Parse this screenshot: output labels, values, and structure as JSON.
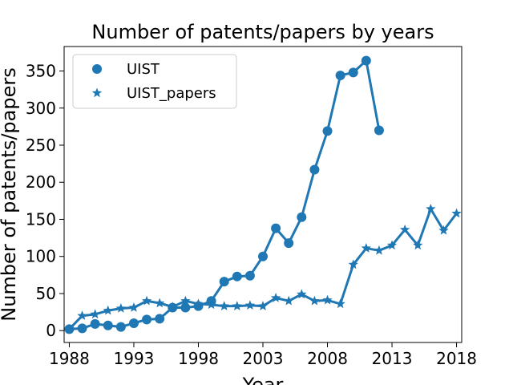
{
  "chart_data": {
    "type": "line",
    "title": "Number of patents/papers by years",
    "xlabel": "Year",
    "ylabel": "Number of patents/papers",
    "xlim": [
      1987.6,
      2018.4
    ],
    "ylim": [
      -16,
      383
    ],
    "xticks": [
      1988,
      1993,
      1998,
      2003,
      2008,
      2013,
      2018
    ],
    "yticks": [
      0,
      50,
      100,
      150,
      200,
      250,
      300,
      350
    ],
    "grid": false,
    "legend_position": "top-left",
    "color": "#1f77b4",
    "series": [
      {
        "name": "UIST",
        "marker": "circle",
        "x": [
          1988,
          1989,
          1990,
          1991,
          1992,
          1993,
          1994,
          1995,
          1996,
          1997,
          1998,
          1999,
          2000,
          2001,
          2002,
          2003,
          2004,
          2005,
          2006,
          2007,
          2008,
          2009,
          2010,
          2011,
          2012
        ],
        "y": [
          2,
          3,
          9,
          7,
          5,
          10,
          15,
          16,
          31,
          31,
          33,
          40,
          66,
          73,
          74,
          100,
          138,
          118,
          153,
          217,
          269,
          344,
          348,
          364,
          270
        ]
      },
      {
        "name": "UIST_papers",
        "marker": "star",
        "x": [
          1988,
          1989,
          1990,
          1991,
          1992,
          1993,
          1994,
          1995,
          1996,
          1997,
          1998,
          1999,
          2000,
          2001,
          2002,
          2003,
          2004,
          2005,
          2006,
          2007,
          2008,
          2009,
          2010,
          2011,
          2012,
          2013,
          2014,
          2015,
          2016,
          2017,
          2018
        ],
        "y": [
          2,
          20,
          22,
          27,
          30,
          31,
          40,
          37,
          32,
          40,
          36,
          35,
          33,
          33,
          34,
          33,
          44,
          40,
          49,
          40,
          41,
          36,
          89,
          111,
          108,
          115,
          136,
          115,
          164,
          135,
          158
        ]
      }
    ]
  }
}
